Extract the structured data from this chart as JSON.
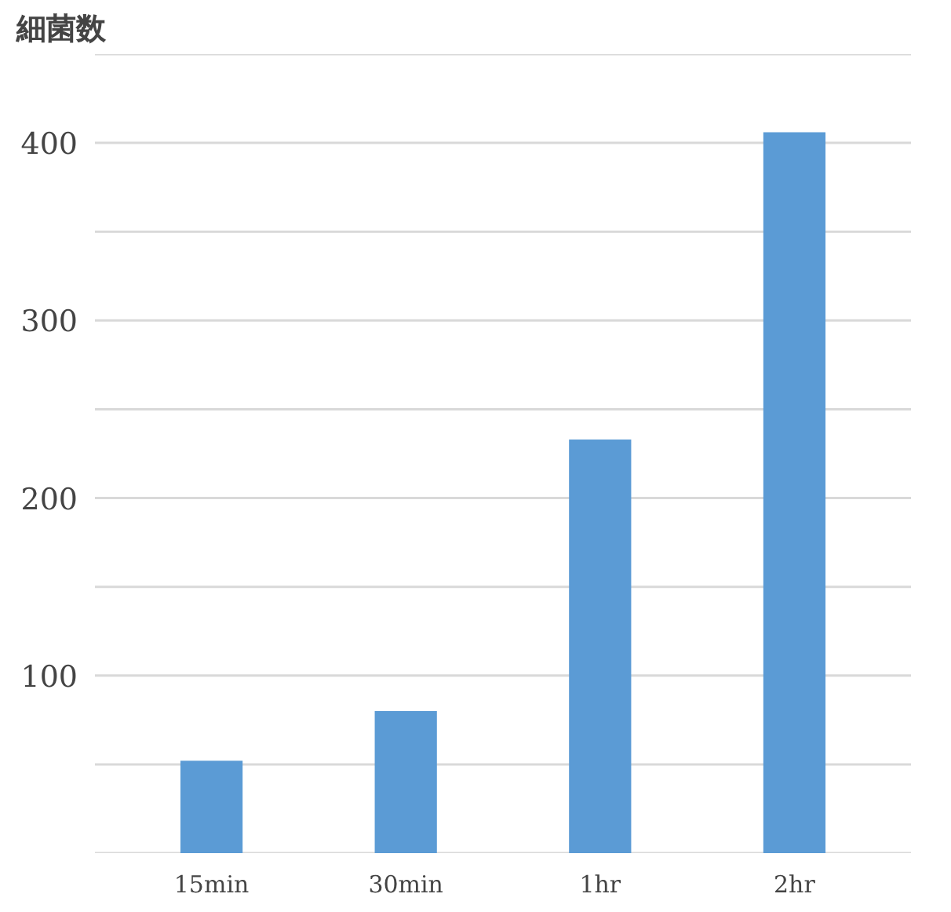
{
  "chart_data": {
    "type": "bar",
    "ylabel": "細菌数",
    "categories": [
      "15min",
      "30min",
      "1hr",
      "2hr"
    ],
    "values": [
      52,
      80,
      233,
      406
    ],
    "color": "#5b9bd5",
    "ylim": [
      0,
      450
    ],
    "yticks": [
      {
        "value": 0,
        "label": null
      },
      {
        "value": 50,
        "label": null
      },
      100,
      {
        "value": 150,
        "label": null
      },
      200,
      {
        "value": 250,
        "label": null
      },
      300,
      {
        "value": 350,
        "label": null
      },
      400,
      {
        "value": 450,
        "label": null
      }
    ],
    "grid": "y"
  }
}
